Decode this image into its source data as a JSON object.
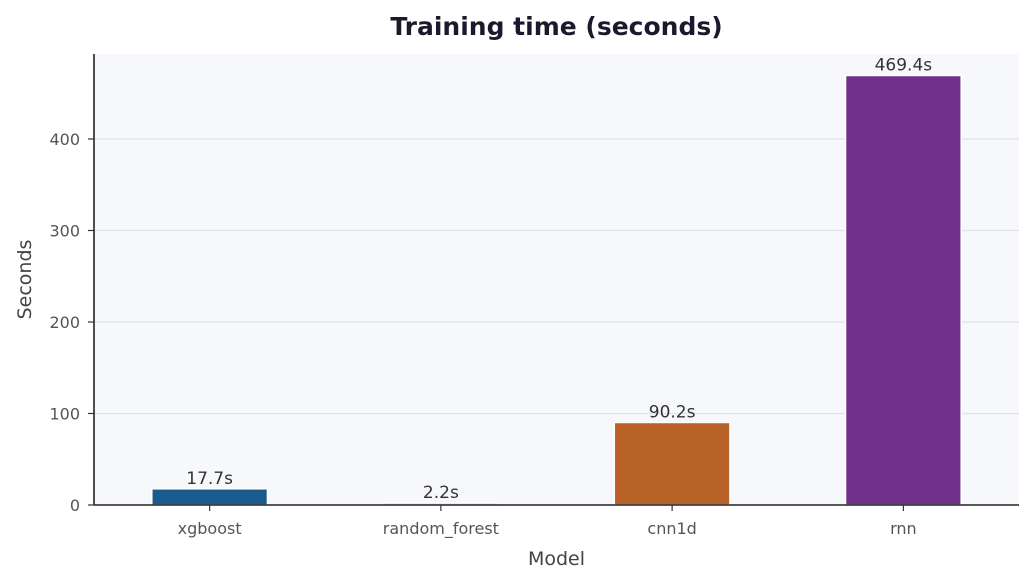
{
  "chart_data": {
    "type": "bar",
    "title": "Training time (seconds)",
    "xlabel": "Model",
    "ylabel": "Seconds",
    "categories": [
      "xgboost",
      "random_forest",
      "cnn1d",
      "rnn"
    ],
    "values": [
      17.7,
      2.2,
      90.2,
      469.4
    ],
    "data_labels": [
      "17.7s",
      "2.2s",
      "90.2s",
      "469.4s"
    ],
    "colors": [
      "#1b5a8c",
      "#a9c7dc",
      "#b86227",
      "#6f2f8a"
    ],
    "yticks": [
      0,
      100,
      200,
      300,
      400
    ],
    "ylim": [
      0,
      492.9
    ],
    "grid": "y",
    "legend": "none",
    "plot_background": "#f7f8fc"
  }
}
